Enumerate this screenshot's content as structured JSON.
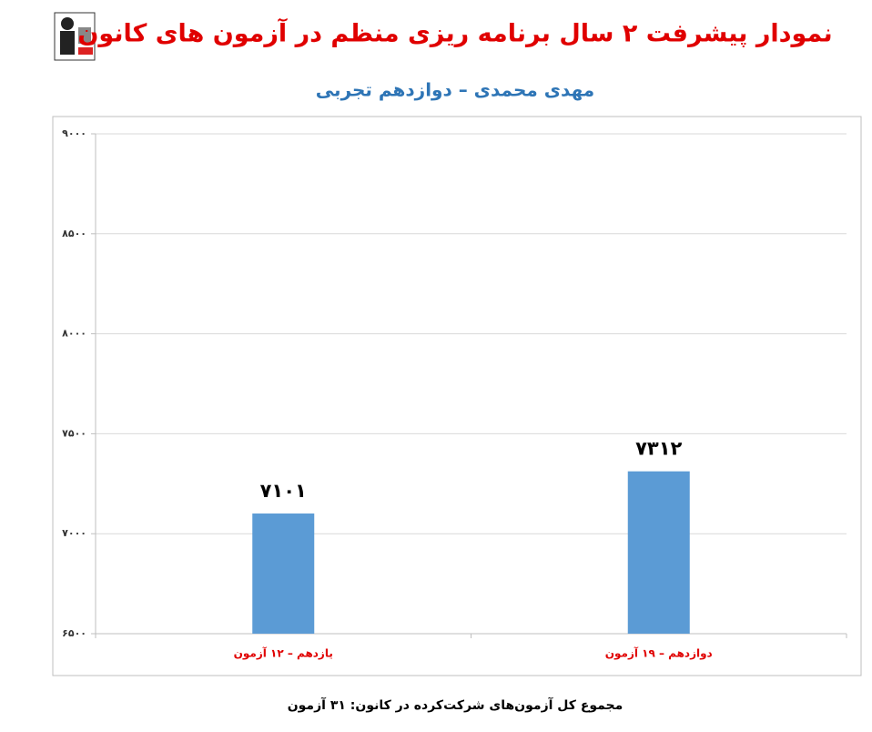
{
  "chart_data": {
    "type": "bar",
    "title": "نمودار پیشرفت ۲ سال برنامه ریزی منظم در آزمون های کانون",
    "subtitle": "مهدی محمدی – دوازدهم تجربی",
    "categories": [
      "یازدهم – ۱۲ آزمون",
      "دوازدهم – ۱۹ آزمون"
    ],
    "values": [
      7101,
      7312
    ],
    "value_labels": [
      "۷۱۰۱",
      "۷۳۱۲"
    ],
    "color": "#5b9bd5",
    "ylim": [
      6500,
      9000
    ],
    "yticks": [
      {
        "value": 6500,
        "label": "۶۵۰۰"
      },
      {
        "value": 7000,
        "label": "۷۰۰۰"
      },
      {
        "value": 7500,
        "label": "۷۵۰۰"
      },
      {
        "value": 8000,
        "label": "۸۰۰۰"
      },
      {
        "value": 8500,
        "label": "۸۵۰۰"
      },
      {
        "value": 9000,
        "label": "۹۰۰۰"
      }
    ],
    "grid": true,
    "footnote": "مجموع کل آزمون‌های شرکت‌کرده در کانون: ۳۱ آزمون"
  }
}
